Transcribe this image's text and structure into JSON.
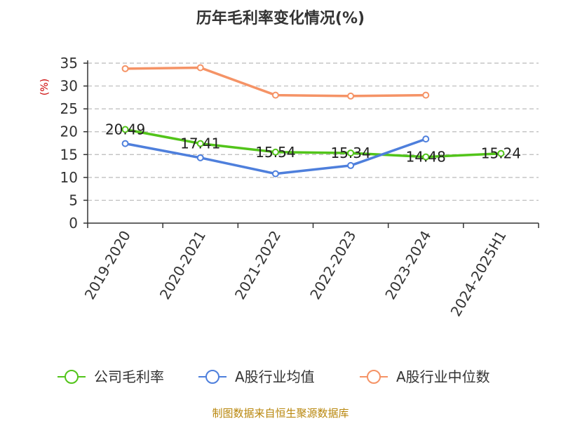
{
  "chart_data": {
    "type": "line",
    "title": "历年毛利率变化情况(%)",
    "ylabel": "(%)",
    "ylim": [
      0,
      35
    ],
    "yticks": [
      0,
      5,
      10,
      15,
      20,
      25,
      30,
      35
    ],
    "grid": true,
    "legend_position": "bottom",
    "categories": [
      "2019-2020",
      "2020-2021",
      "2021-2022",
      "2022-2023",
      "2023-2024",
      "2024-2025H1"
    ],
    "series": [
      {
        "name": "公司毛利率",
        "color": "#52c41a",
        "values": [
          20.49,
          17.41,
          15.54,
          15.34,
          14.48,
          15.24
        ],
        "show_labels": true
      },
      {
        "name": "A股行业均值",
        "color": "#4e7fdc",
        "values": [
          17.4,
          14.3,
          10.8,
          12.6,
          18.4,
          null
        ],
        "show_labels": false
      },
      {
        "name": "A股行业中位数",
        "color": "#f59366",
        "values": [
          33.8,
          34.0,
          28.0,
          27.8,
          28.0,
          null
        ],
        "show_labels": false
      }
    ]
  },
  "source_note": "制图数据来自恒生聚源数据库"
}
